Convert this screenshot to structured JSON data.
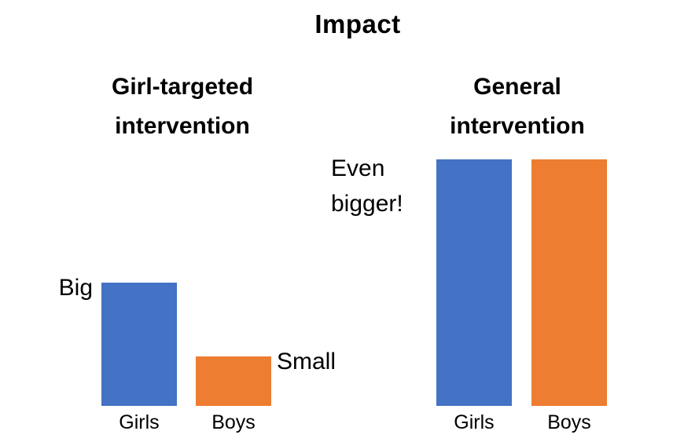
{
  "title": "Impact",
  "colors": {
    "girls_series": "#4472C4",
    "boys_series": "#ED7D31",
    "text": "#000000",
    "background": "#FFFFFF"
  },
  "chart_data": {
    "type": "bar",
    "title": "Impact",
    "xlabel": "",
    "ylabel": "",
    "grid": false,
    "axes_visible": false,
    "legend_position": "none",
    "ylim": [
      0,
      100
    ],
    "series_colors": {
      "Girls": "#4472C4",
      "Boys": "#ED7D31"
    },
    "groups": [
      {
        "title": "Girl-targeted intervention",
        "categories": [
          "Girls",
          "Boys"
        ],
        "values": [
          50,
          20
        ],
        "bar_annotations": [
          "Big",
          "Small"
        ]
      },
      {
        "title": "General intervention",
        "categories": [
          "Girls",
          "Boys"
        ],
        "values": [
          100,
          100
        ],
        "annotation": "Even bigger!"
      }
    ]
  }
}
